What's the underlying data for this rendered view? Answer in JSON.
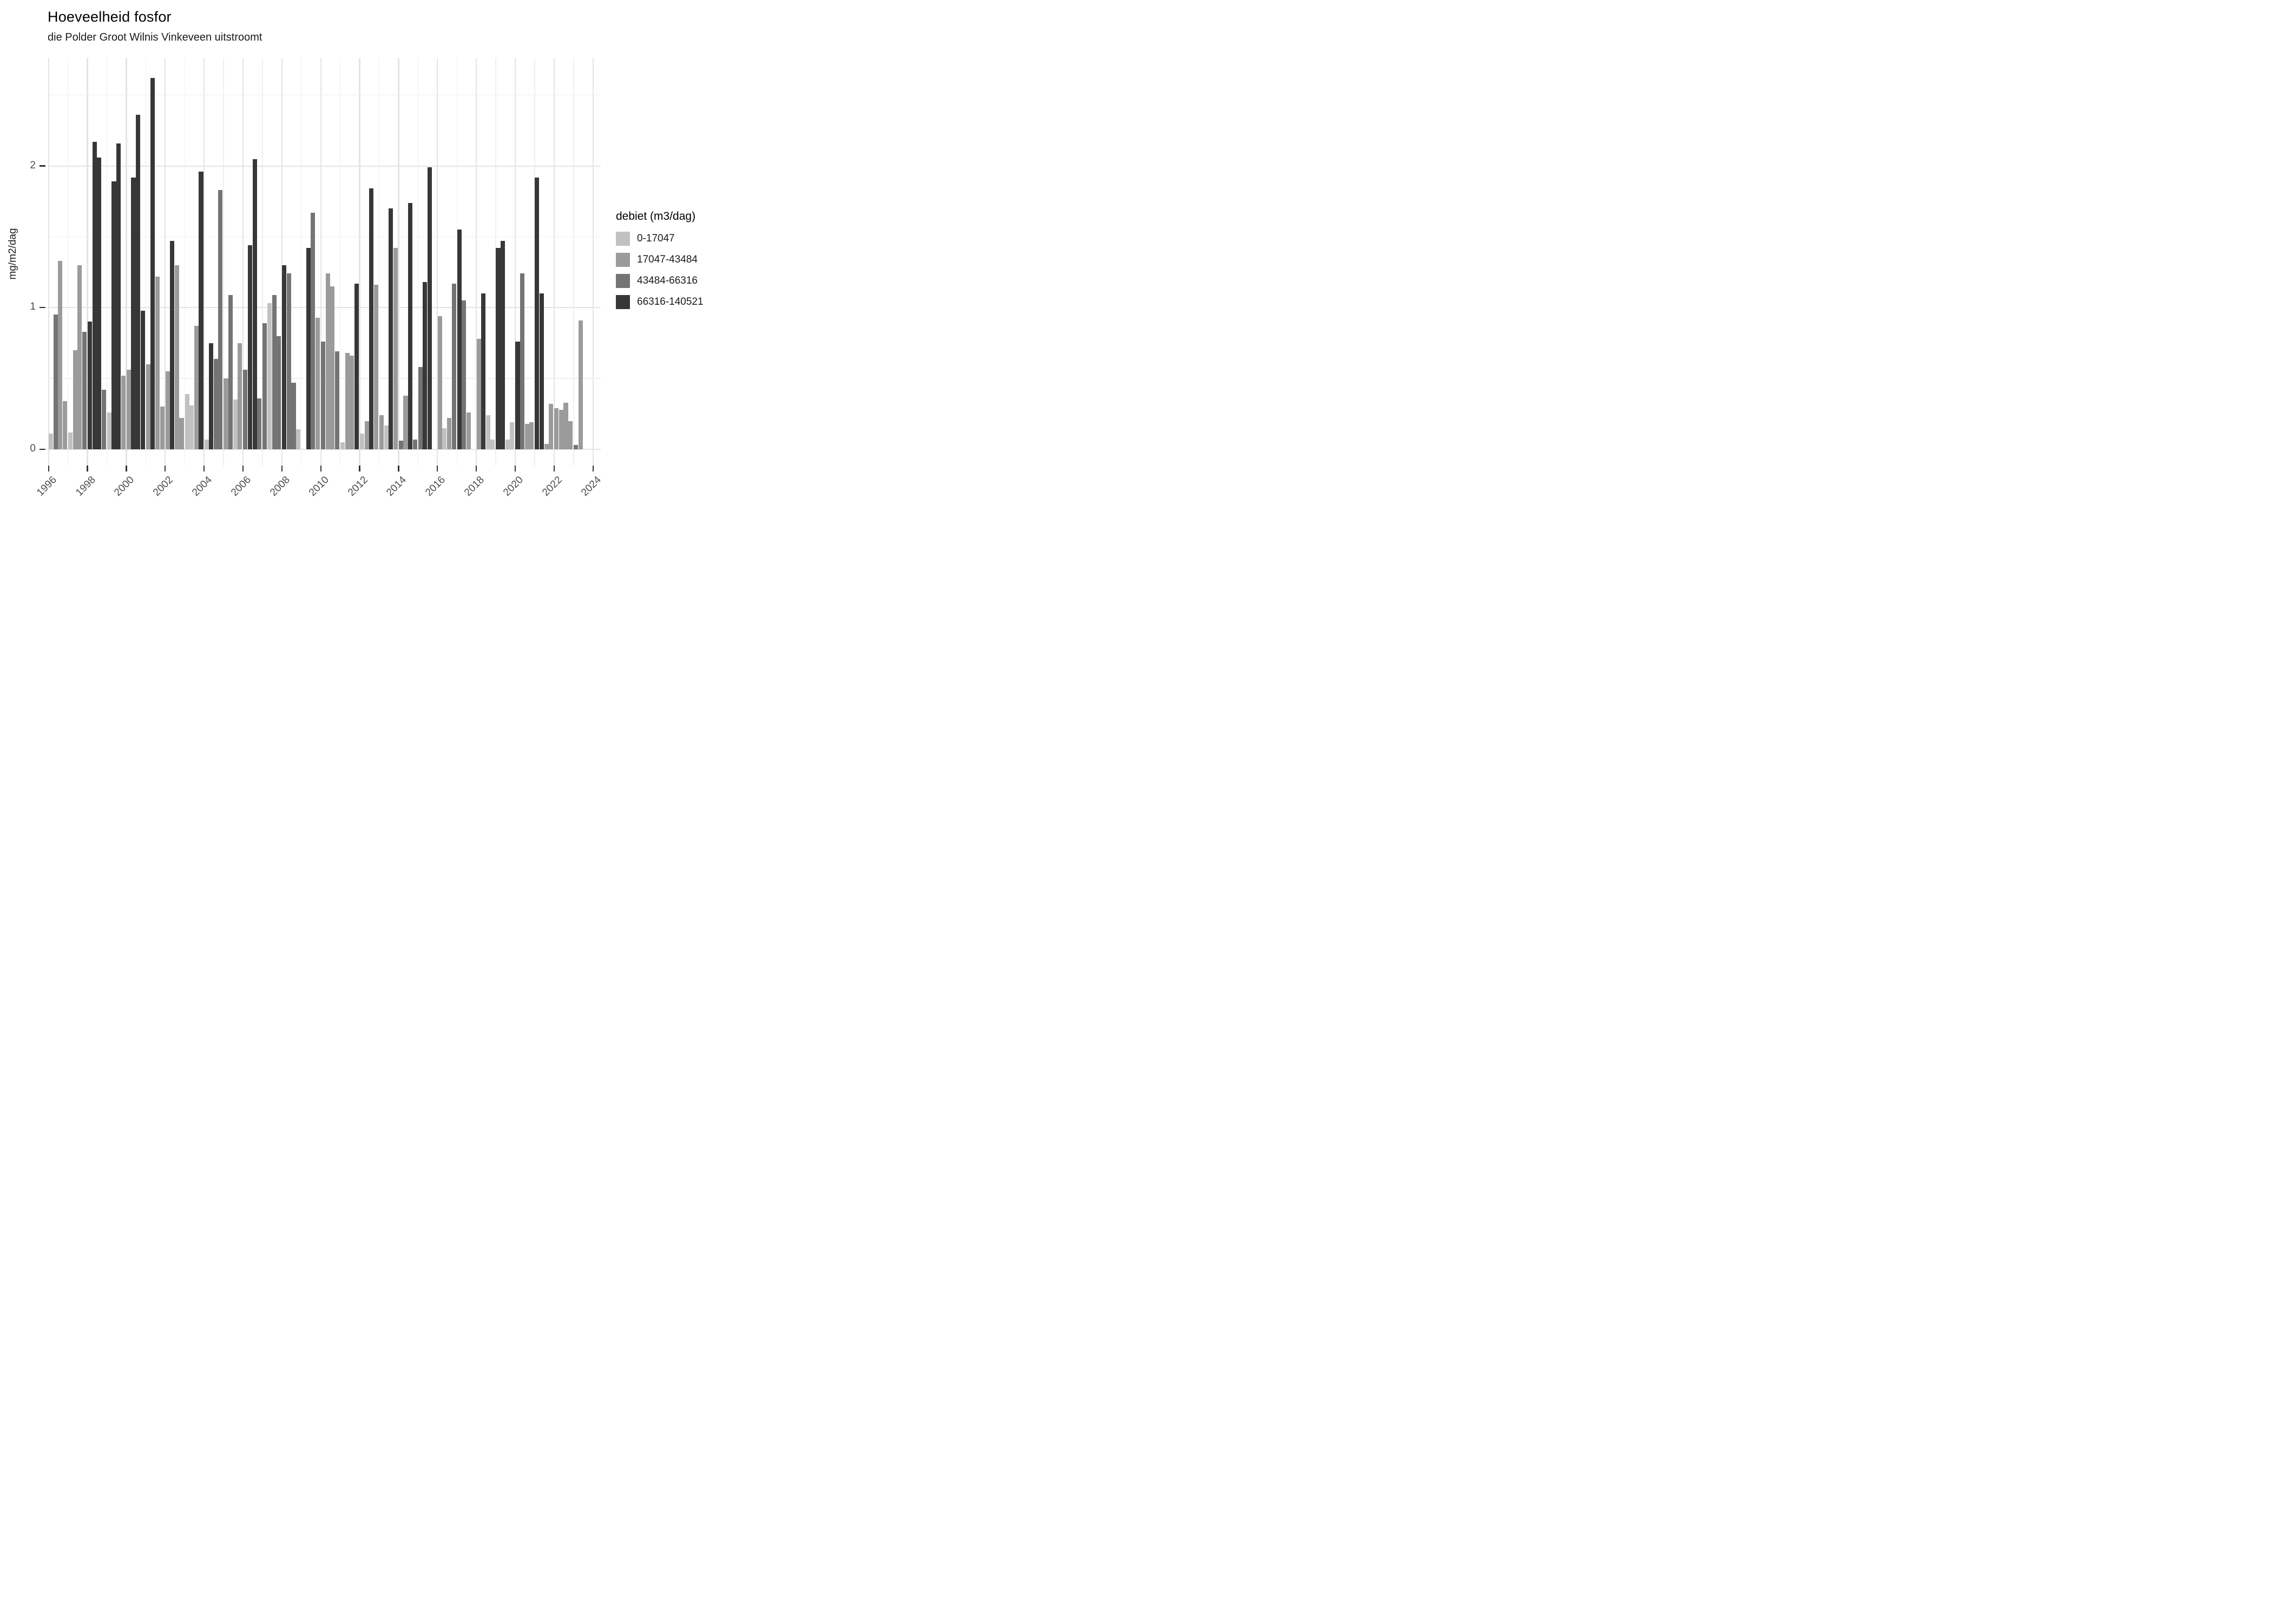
{
  "header": {
    "title": "Hoeveelheid fosfor",
    "subtitle": "die Polder Groot Wilnis Vinkeveen uitstroomt"
  },
  "legend": {
    "title": "debiet (m3/dag)",
    "items": [
      {
        "label": "0-17047",
        "color": "#c1c1c1"
      },
      {
        "label": "17047-43484",
        "color": "#9b9b9b"
      },
      {
        "label": "43484-66316",
        "color": "#747474"
      },
      {
        "label": "66316-140521",
        "color": "#373737"
      }
    ]
  },
  "chart_data": {
    "type": "bar",
    "title": "Hoeveelheid fosfor",
    "subtitle": "die Polder Groot Wilnis Vinkeveen uitstroomt",
    "xlabel": "",
    "ylabel": "mg/m2/dag",
    "ylim": [
      0,
      2.75
    ],
    "y_ticks": [
      0,
      1,
      2
    ],
    "y_minor": [
      0.5,
      1.5,
      2.5
    ],
    "x_ticks": [
      1996,
      1998,
      2000,
      2002,
      2004,
      2006,
      2008,
      2010,
      2012,
      2014,
      2016,
      2018,
      2020,
      2022,
      2024
    ],
    "x_range": [
      1996,
      2024
    ],
    "grid": "on",
    "legend_position": "right",
    "categories": [
      "0-17047",
      "17047-43484",
      "43484-66316",
      "66316-140521"
    ],
    "category_colors": [
      "#c1c1c1",
      "#9b9b9b",
      "#747474",
      "#373737"
    ],
    "series_unit": "mg/m2/dag, 4 quarterly bars per year, shade = debiet class (L=0-17047, M=17047-43484, D=43484-66316, K=66316-140521)",
    "years": [
      {
        "year": 1996,
        "values": [
          0.11,
          0.95,
          1.33,
          0.34
        ],
        "classes": [
          "L",
          "D",
          "M",
          "M"
        ]
      },
      {
        "year": 1997,
        "values": [
          0.12,
          0.7,
          1.3,
          0.83
        ],
        "classes": [
          "L",
          "M",
          "M",
          "D"
        ]
      },
      {
        "year": 1998,
        "values": [
          0.9,
          2.17,
          2.06,
          0.42
        ],
        "classes": [
          "K",
          "K",
          "K",
          "D"
        ]
      },
      {
        "year": 1999,
        "values": [
          0.26,
          1.89,
          2.16,
          0.52
        ],
        "classes": [
          "L",
          "K",
          "K",
          "M"
        ]
      },
      {
        "year": 2000,
        "values": [
          0.56,
          1.92,
          2.36,
          0.98
        ],
        "classes": [
          "M",
          "K",
          "K",
          "K"
        ]
      },
      {
        "year": 2001,
        "values": [
          0.6,
          2.62,
          1.22,
          0.3
        ],
        "classes": [
          "M",
          "K",
          "M",
          "M"
        ]
      },
      {
        "year": 2002,
        "values": [
          0.55,
          1.47,
          1.3,
          0.22
        ],
        "classes": [
          "M",
          "K",
          "M",
          "M"
        ]
      },
      {
        "year": 2003,
        "values": [
          0.39,
          0.31,
          0.87,
          1.96
        ],
        "classes": [
          "L",
          "L",
          "M",
          "K"
        ]
      },
      {
        "year": 2004,
        "values": [
          0.07,
          0.75,
          0.64,
          1.83
        ],
        "classes": [
          "L",
          "K",
          "D",
          "D"
        ]
      },
      {
        "year": 2005,
        "values": [
          0.5,
          1.09,
          0.35,
          0.75
        ],
        "classes": [
          "M",
          "D",
          "L",
          "M"
        ]
      },
      {
        "year": 2006,
        "values": [
          0.56,
          1.44,
          2.05,
          0.36
        ],
        "classes": [
          "D",
          "K",
          "K",
          "D"
        ]
      },
      {
        "year": 2007,
        "values": [
          0.89,
          1.03,
          1.09,
          0.8
        ],
        "classes": [
          "D",
          "L",
          "D",
          "D"
        ]
      },
      {
        "year": 2008,
        "values": [
          1.3,
          1.24,
          0.47,
          0.14
        ],
        "classes": [
          "K",
          "D",
          "D",
          "L"
        ]
      },
      {
        "year": 2009,
        "values": [
          null,
          1.42,
          1.67,
          0.93
        ],
        "classes": [
          null,
          "K",
          "D",
          "M"
        ]
      },
      {
        "year": 2010,
        "values": [
          0.76,
          1.24,
          1.15,
          0.69
        ],
        "classes": [
          "D",
          "M",
          "M",
          "D"
        ]
      },
      {
        "year": 2011,
        "values": [
          0.05,
          0.68,
          0.66,
          1.17
        ],
        "classes": [
          "L",
          "M",
          "M",
          "K"
        ]
      },
      {
        "year": 2012,
        "values": [
          0.11,
          0.2,
          1.84,
          1.16
        ],
        "classes": [
          "L",
          "M",
          "K",
          "M"
        ]
      },
      {
        "year": 2013,
        "values": [
          0.24,
          0.17,
          1.7,
          1.42
        ],
        "classes": [
          "M",
          "L",
          "K",
          "M"
        ]
      },
      {
        "year": 2014,
        "values": [
          0.06,
          0.38,
          1.74,
          0.07
        ],
        "classes": [
          "D",
          "M",
          "K",
          "D"
        ]
      },
      {
        "year": 2015,
        "values": [
          0.58,
          1.18,
          1.99,
          null
        ],
        "classes": [
          "D",
          "K",
          "K",
          null
        ]
      },
      {
        "year": 2016,
        "values": [
          0.94,
          0.15,
          0.22,
          1.17
        ],
        "classes": [
          "M",
          "L",
          "M",
          "D"
        ]
      },
      {
        "year": 2017,
        "values": [
          1.55,
          1.05,
          0.26,
          null
        ],
        "classes": [
          "K",
          "D",
          "M",
          null
        ]
      },
      {
        "year": 2018,
        "values": [
          0.78,
          1.1,
          0.24,
          0.07
        ],
        "classes": [
          "M",
          "K",
          "L",
          "L"
        ]
      },
      {
        "year": 2019,
        "values": [
          1.42,
          1.47,
          0.07,
          0.19
        ],
        "classes": [
          "K",
          "K",
          "L",
          "L"
        ]
      },
      {
        "year": 2020,
        "values": [
          0.76,
          1.24,
          0.18,
          0.19
        ],
        "classes": [
          "K",
          "D",
          "M",
          "M"
        ]
      },
      {
        "year": 2021,
        "values": [
          1.92,
          1.1,
          0.04,
          0.32
        ],
        "classes": [
          "K",
          "K",
          "M",
          "M"
        ]
      },
      {
        "year": 2022,
        "values": [
          0.29,
          0.28,
          0.33,
          0.2
        ],
        "classes": [
          "M",
          "M",
          "M",
          "M"
        ]
      },
      {
        "year": 2023,
        "values": [
          0.03,
          0.91,
          null,
          null
        ],
        "classes": [
          "D",
          "M",
          null,
          null
        ]
      }
    ],
    "class_color_map": {
      "L": "#c1c1c1",
      "M": "#9b9b9b",
      "D": "#747474",
      "K": "#373737"
    }
  }
}
